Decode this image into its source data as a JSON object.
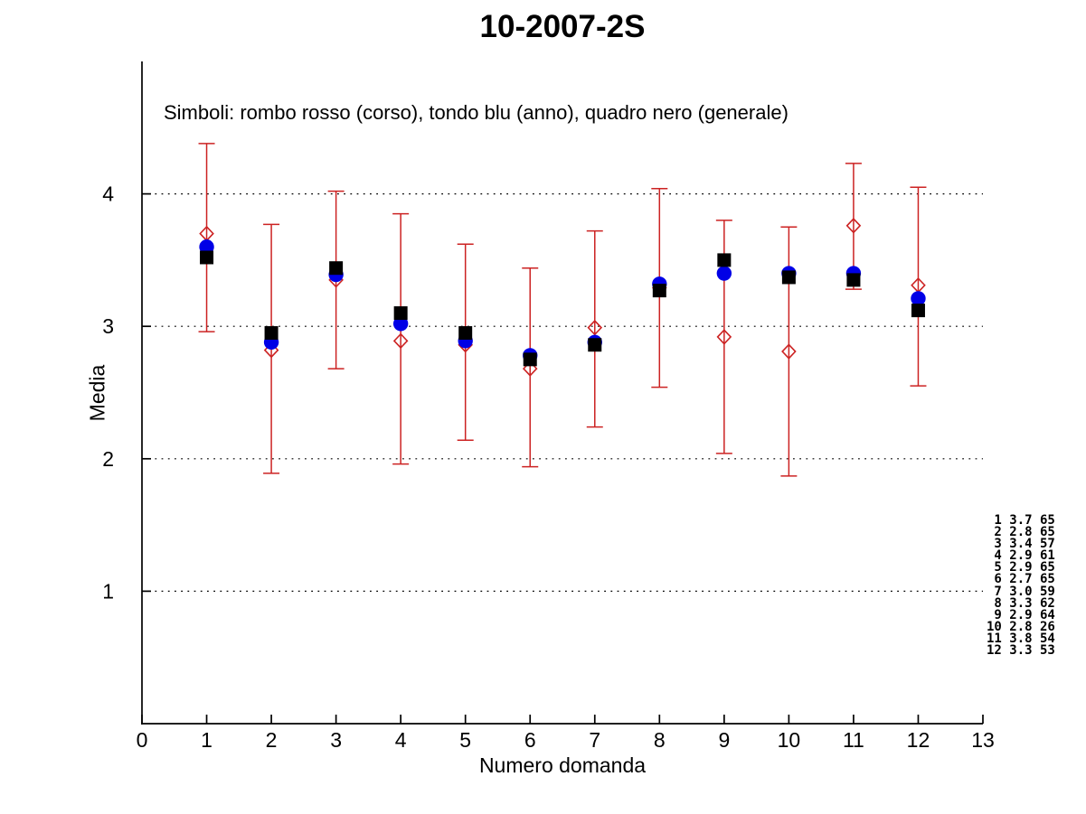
{
  "chart_data": {
    "type": "scatter",
    "title": "10-2007-2S",
    "xlabel": "Numero domanda",
    "ylabel": "Media",
    "annotation": "Simboli: rombo rosso (corso), tondo blu (anno), quadro nero (generale)",
    "xlim": [
      0,
      13
    ],
    "ylim": [
      0,
      5
    ],
    "xticks": [
      0,
      1,
      2,
      3,
      4,
      5,
      6,
      7,
      8,
      9,
      10,
      11,
      12,
      13
    ],
    "yticks": [
      1,
      2,
      3,
      4
    ],
    "grid": "horizontal-dotted-at-yticks",
    "legend_position": "text-annotation-top-left-inside",
    "categories": [
      1,
      2,
      3,
      4,
      5,
      6,
      7,
      8,
      9,
      10,
      11,
      12
    ],
    "series": [
      {
        "name": "corso",
        "label": "rombo rosso (corso)",
        "marker": "open-diamond",
        "color": "#cc2222",
        "values": [
          3.7,
          2.82,
          3.35,
          2.89,
          2.86,
          2.68,
          2.99,
          3.29,
          2.92,
          2.81,
          3.76,
          3.31
        ],
        "err_high": [
          4.38,
          3.77,
          4.02,
          3.85,
          3.62,
          3.44,
          3.72,
          4.04,
          3.8,
          3.75,
          4.23,
          4.05
        ],
        "err_low": [
          2.96,
          1.89,
          2.68,
          1.96,
          2.14,
          1.94,
          2.24,
          2.54,
          2.04,
          1.87,
          3.28,
          2.55
        ]
      },
      {
        "name": "anno",
        "label": "tondo blu (anno)",
        "marker": "filled-circle",
        "color": "#0000e6",
        "values": [
          3.6,
          2.88,
          3.39,
          3.02,
          2.89,
          2.78,
          2.88,
          3.32,
          3.4,
          3.4,
          3.4,
          3.21
        ]
      },
      {
        "name": "generale",
        "label": "quadro nero (generale)",
        "marker": "filled-square",
        "color": "#000000",
        "values": [
          3.52,
          2.95,
          3.44,
          3.1,
          2.95,
          2.75,
          2.86,
          3.27,
          3.5,
          3.37,
          3.35,
          3.12
        ]
      }
    ],
    "side_table": {
      "rows": [
        [
          1,
          "3.7",
          65
        ],
        [
          2,
          "2.8",
          65
        ],
        [
          3,
          "3.4",
          57
        ],
        [
          4,
          "2.9",
          61
        ],
        [
          5,
          "2.9",
          65
        ],
        [
          6,
          "2.7",
          65
        ],
        [
          7,
          "3.0",
          59
        ],
        [
          8,
          "3.3",
          62
        ],
        [
          9,
          "2.9",
          64
        ],
        [
          10,
          "2.8",
          26
        ],
        [
          11,
          "3.8",
          54
        ],
        [
          12,
          "3.3",
          53
        ]
      ]
    },
    "axis_color": "#000000",
    "grid_color": "#000000"
  }
}
